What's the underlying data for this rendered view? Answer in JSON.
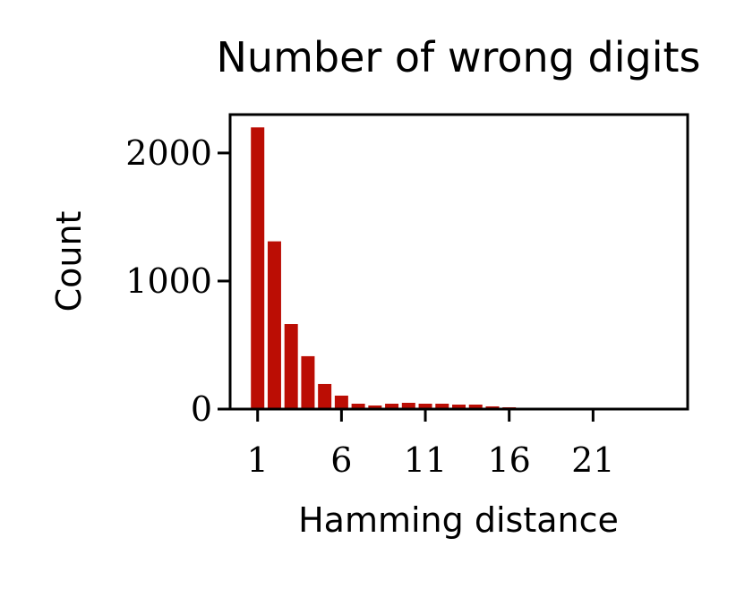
{
  "chart_data": {
    "type": "bar",
    "title": "Number of wrong digits",
    "xlabel": "Hamming distance",
    "ylabel": "Count",
    "x": [
      1,
      2,
      3,
      4,
      5,
      6,
      7,
      8,
      9,
      10,
      11,
      12,
      13,
      14,
      15,
      16,
      17,
      18,
      19,
      20,
      21,
      22,
      23,
      24,
      25
    ],
    "values": [
      2200,
      1310,
      664,
      413,
      196,
      105,
      42,
      28,
      42,
      49,
      42,
      42,
      35,
      35,
      21,
      14,
      5,
      3,
      3,
      2,
      2,
      1,
      1,
      1,
      1
    ],
    "color": "#bb0d04",
    "xlim": [
      -0.64,
      26.64
    ],
    "xticks": [
      1,
      6,
      11,
      16,
      21
    ],
    "ylim": [
      0,
      2300
    ],
    "yticks": [
      0,
      1000,
      2000
    ]
  }
}
